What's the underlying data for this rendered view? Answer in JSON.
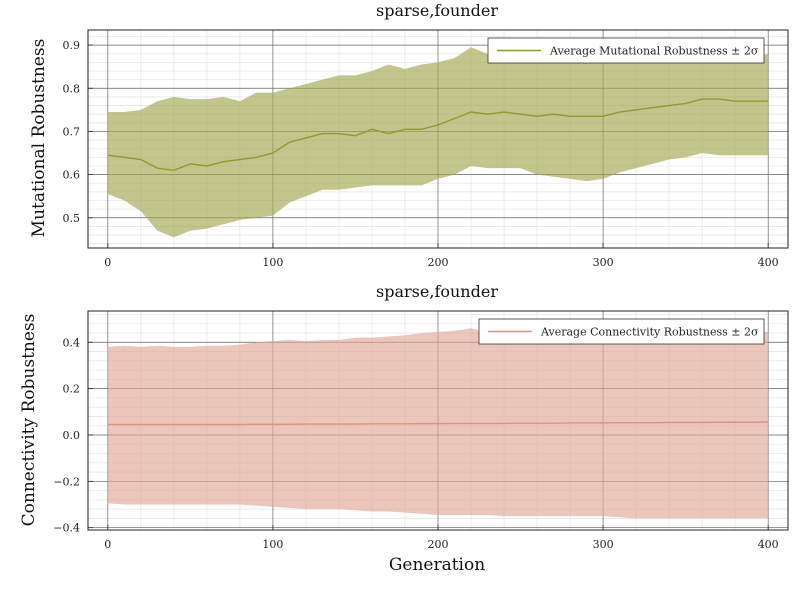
{
  "chart_data": [
    {
      "type": "area",
      "title": "sparse,founder",
      "xlabel": "",
      "ylabel": "Mutational Robustness",
      "xlim": [
        -12,
        412
      ],
      "ylim": [
        0.43,
        0.935
      ],
      "xticks": [
        0,
        100,
        200,
        300,
        400
      ],
      "yticks": [
        0.5,
        0.6,
        0.7,
        0.8,
        0.9
      ],
      "ytick_labels": [
        "0.5",
        "0.6",
        "0.7",
        "0.8",
        "0.9"
      ],
      "grid": true,
      "legend": "top-right",
      "color_line": "#8f9a2f",
      "color_fill": "#a3a84f",
      "series": [
        {
          "name": "Average Mutational Robustness ± 2σ",
          "x": [
            0,
            10,
            20,
            30,
            40,
            50,
            60,
            70,
            80,
            90,
            100,
            110,
            120,
            130,
            140,
            150,
            160,
            170,
            180,
            190,
            200,
            210,
            220,
            230,
            240,
            250,
            260,
            270,
            280,
            290,
            300,
            310,
            320,
            330,
            340,
            350,
            360,
            370,
            380,
            390,
            400
          ],
          "mean": [
            0.645,
            0.64,
            0.635,
            0.615,
            0.61,
            0.625,
            0.62,
            0.63,
            0.635,
            0.64,
            0.65,
            0.675,
            0.685,
            0.695,
            0.695,
            0.69,
            0.705,
            0.695,
            0.705,
            0.705,
            0.715,
            0.73,
            0.745,
            0.74,
            0.745,
            0.74,
            0.735,
            0.74,
            0.735,
            0.735,
            0.735,
            0.745,
            0.75,
            0.755,
            0.76,
            0.765,
            0.775,
            0.775,
            0.77,
            0.77,
            0.77
          ],
          "upper": [
            0.745,
            0.745,
            0.75,
            0.77,
            0.78,
            0.775,
            0.775,
            0.78,
            0.77,
            0.79,
            0.79,
            0.8,
            0.81,
            0.82,
            0.83,
            0.83,
            0.84,
            0.855,
            0.845,
            0.855,
            0.86,
            0.87,
            0.895,
            0.88,
            0.87,
            0.87,
            0.875,
            0.875,
            0.87,
            0.865,
            0.865,
            0.87,
            0.875,
            0.87,
            0.865,
            0.87,
            0.865,
            0.865,
            0.87,
            0.87,
            0.88
          ],
          "lower": [
            0.555,
            0.54,
            0.515,
            0.47,
            0.455,
            0.47,
            0.475,
            0.485,
            0.495,
            0.5,
            0.505,
            0.535,
            0.55,
            0.565,
            0.565,
            0.57,
            0.575,
            0.575,
            0.575,
            0.575,
            0.59,
            0.6,
            0.62,
            0.615,
            0.615,
            0.615,
            0.6,
            0.595,
            0.59,
            0.585,
            0.59,
            0.605,
            0.615,
            0.625,
            0.635,
            0.64,
            0.65,
            0.645,
            0.645,
            0.645,
            0.645
          ]
        }
      ]
    },
    {
      "type": "area",
      "title": "sparse,founder",
      "xlabel": "Generation",
      "ylabel": "Connectivity Robustness",
      "xlim": [
        -12,
        412
      ],
      "ylim": [
        -0.41,
        0.535
      ],
      "xticks": [
        0,
        100,
        200,
        300,
        400
      ],
      "yticks": [
        -0.4,
        -0.2,
        0.0,
        0.2,
        0.4
      ],
      "ytick_labels": [
        "−0.4",
        "−0.2",
        "0.0",
        "0.2",
        "0.4"
      ],
      "grid": true,
      "legend": "top-right",
      "color_line": "#e0917e",
      "color_fill": "#e0a797",
      "series": [
        {
          "name": "Average Connectivity Robustness ± 2σ",
          "x": [
            0,
            10,
            20,
            30,
            40,
            50,
            60,
            70,
            80,
            90,
            100,
            110,
            120,
            130,
            140,
            150,
            160,
            170,
            180,
            190,
            200,
            210,
            220,
            230,
            240,
            250,
            260,
            270,
            280,
            290,
            300,
            310,
            320,
            330,
            340,
            350,
            360,
            370,
            380,
            390,
            400
          ],
          "mean": [
            0.045,
            0.045,
            0.045,
            0.045,
            0.045,
            0.045,
            0.045,
            0.045,
            0.045,
            0.046,
            0.046,
            0.046,
            0.047,
            0.047,
            0.047,
            0.047,
            0.048,
            0.048,
            0.048,
            0.049,
            0.049,
            0.05,
            0.05,
            0.05,
            0.05,
            0.051,
            0.051,
            0.051,
            0.052,
            0.052,
            0.052,
            0.053,
            0.053,
            0.053,
            0.054,
            0.054,
            0.054,
            0.055,
            0.055,
            0.055,
            0.056
          ],
          "upper": [
            0.38,
            0.385,
            0.38,
            0.385,
            0.38,
            0.38,
            0.385,
            0.385,
            0.39,
            0.4,
            0.405,
            0.41,
            0.405,
            0.41,
            0.41,
            0.42,
            0.42,
            0.425,
            0.43,
            0.44,
            0.445,
            0.45,
            0.46,
            0.445,
            0.445,
            0.445,
            0.44,
            0.44,
            0.44,
            0.435,
            0.435,
            0.44,
            0.44,
            0.445,
            0.445,
            0.445,
            0.445,
            0.445,
            0.45,
            0.445,
            0.445
          ],
          "lower": [
            -0.295,
            -0.3,
            -0.3,
            -0.3,
            -0.3,
            -0.3,
            -0.3,
            -0.3,
            -0.3,
            -0.305,
            -0.31,
            -0.315,
            -0.32,
            -0.32,
            -0.32,
            -0.325,
            -0.33,
            -0.33,
            -0.335,
            -0.34,
            -0.345,
            -0.345,
            -0.345,
            -0.345,
            -0.35,
            -0.35,
            -0.35,
            -0.35,
            -0.35,
            -0.35,
            -0.35,
            -0.355,
            -0.36,
            -0.36,
            -0.36,
            -0.36,
            -0.36,
            -0.36,
            -0.36,
            -0.36,
            -0.36
          ]
        }
      ]
    }
  ]
}
